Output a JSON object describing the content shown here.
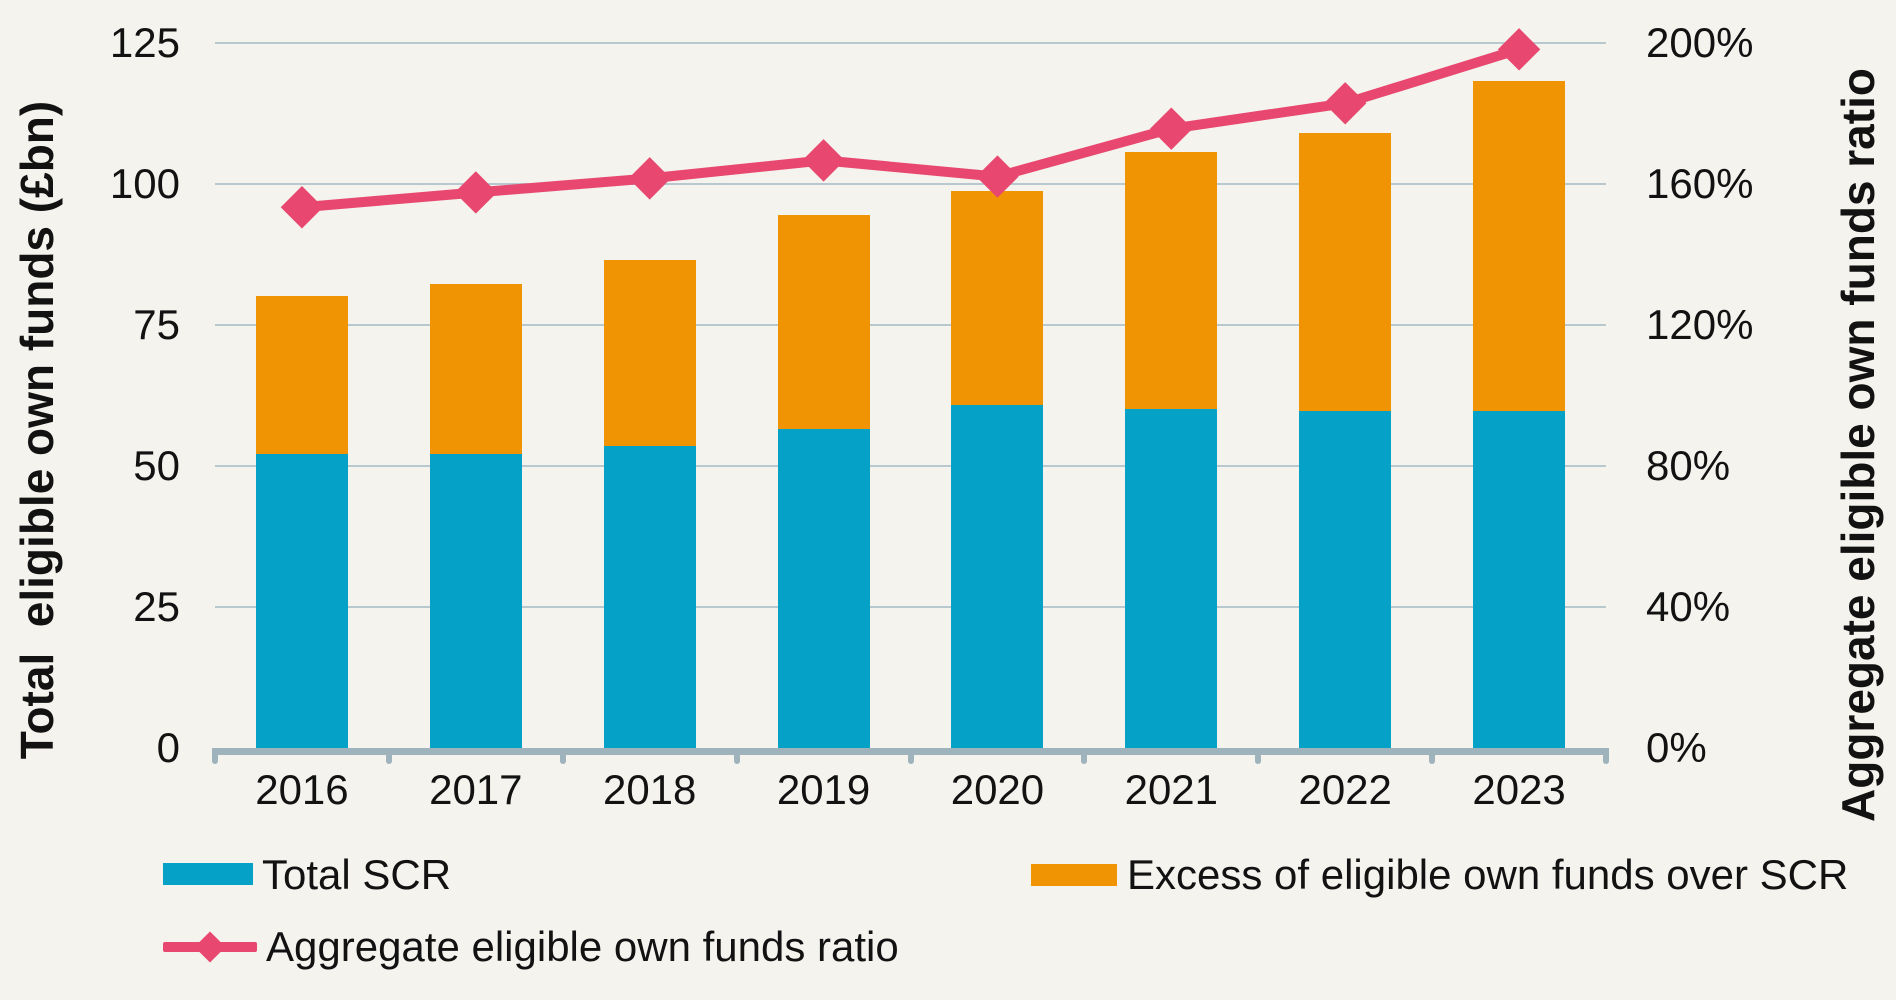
{
  "chart_data": {
    "type": "bar",
    "subtype": "stacked-bars-with-line-overlay",
    "categories": [
      "2016",
      "2017",
      "2018",
      "2019",
      "2020",
      "2021",
      "2022",
      "2023"
    ],
    "series": [
      {
        "name": "Total SCR",
        "type": "bar",
        "stack": "own-funds",
        "color": "#06A1C6",
        "values": [
          52.2,
          52.1,
          53.5,
          56.5,
          60.9,
          60.1,
          59.8,
          59.7
        ]
      },
      {
        "name": "Excess of eligible own funds over SCR",
        "type": "bar",
        "stack": "own-funds",
        "color": "#F19403",
        "values": [
          28.0,
          30.2,
          33.1,
          38.0,
          37.9,
          45.6,
          49.2,
          58.6
        ]
      },
      {
        "name": "Aggregate eligible own funds ratio",
        "type": "line",
        "marker": "diamond",
        "axis": "right",
        "color": "#E8486F",
        "values_pct": [
          153.4,
          157.6,
          161.6,
          166.7,
          162.1,
          175.7,
          182.9,
          198.2
        ]
      }
    ],
    "stacked_totals": [
      80.2,
      82.3,
      86.6,
      94.5,
      98.8,
      105.7,
      109.0,
      118.3
    ],
    "left_axis": {
      "title": "Total  eligible own funds (£bn)",
      "tick_labels": [
        "0",
        "25",
        "50",
        "75",
        "100",
        "125"
      ],
      "tick_values": [
        0,
        25,
        50,
        75,
        100,
        125
      ],
      "range": [
        0,
        125
      ]
    },
    "right_axis": {
      "title": "Aggregate eligible own funds ratio",
      "tick_labels": [
        "0%",
        "40%",
        "80%",
        "120%",
        "160%",
        "200%"
      ],
      "tick_values": [
        0,
        40,
        80,
        120,
        160,
        200
      ],
      "range": [
        0,
        200
      ]
    },
    "grid": true,
    "legend_position": "bottom",
    "colors": {
      "background": "#F4F3EE",
      "gridline": "#B7C8CE",
      "axis_line": "#9FB3BC",
      "text": "#121212"
    }
  }
}
